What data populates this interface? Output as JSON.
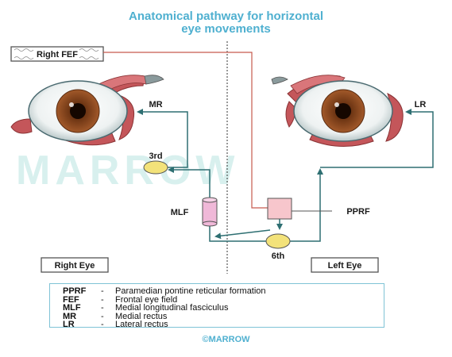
{
  "title": {
    "line1": "Anatomical pathway for horizontal",
    "line2": "eye movements"
  },
  "labels": {
    "right_fef": "Right FEF",
    "mr": "MR",
    "lr": "LR",
    "third": "3rd",
    "mlf": "MLF",
    "pprf": "PPRF",
    "sixth": "6th",
    "right_eye": "Right Eye",
    "left_eye": "Left Eye"
  },
  "watermark": "MARROW",
  "legend": [
    {
      "abbr": "PPRF",
      "dash": "-",
      "text": "Paramedian pontine reticular formation"
    },
    {
      "abbr": "FEF",
      "dash": "-",
      "text": "Frontal eye field"
    },
    {
      "abbr": "MLF",
      "dash": "-",
      "text": "Medial longitudinal fasciculus"
    },
    {
      "abbr": "MR",
      "dash": "-",
      "text": "Medial rectus"
    },
    {
      "abbr": "LR",
      "dash": "-",
      "text": "Lateral rectus"
    }
  ],
  "footer": "©MARROW",
  "colors": {
    "title": "#4fb0d0",
    "pathway_teal": "#2e6f72",
    "fef_line": "#c65a4e",
    "nucleus_yellow": "#f3e27a",
    "mlf_pink": "#f0b8d8",
    "pprf_pink": "#f7c6cc",
    "iris_brown": "#8a4a22",
    "muscle_red": "#c4565a"
  }
}
